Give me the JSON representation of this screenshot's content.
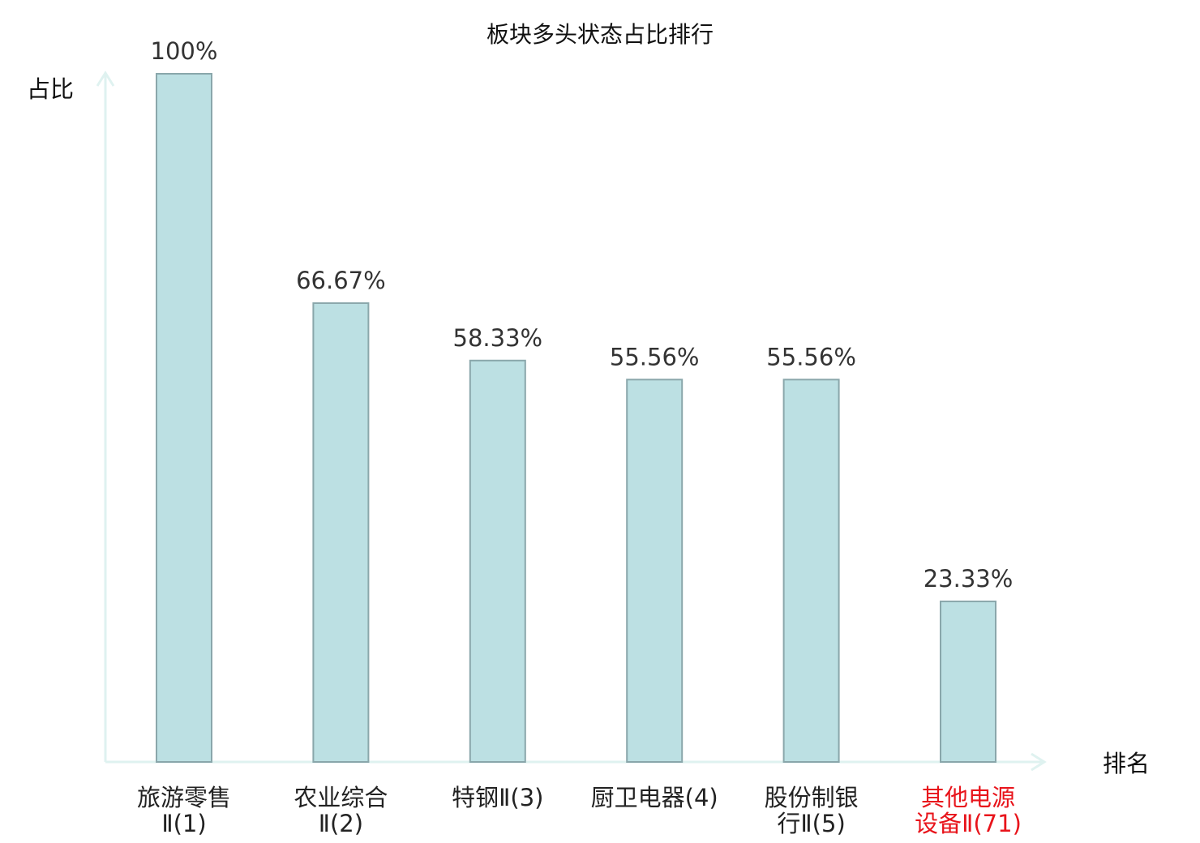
{
  "chart_data": {
    "type": "bar",
    "title": "板块多头状态占比排行",
    "ylabel": "占比",
    "xlabel": "排名",
    "ylim": [
      0,
      100
    ],
    "grid": false,
    "legend": "none",
    "categories": [
      [
        "旅游零售",
        "Ⅱ(1)"
      ],
      [
        "农业综合",
        "Ⅱ(2)"
      ],
      [
        "特钢Ⅱ(3)"
      ],
      [
        "厨卫电器(4)"
      ],
      [
        "股份制银",
        "行Ⅱ(5)"
      ],
      [
        "其他电源",
        "设备Ⅱ(71)"
      ]
    ],
    "values": [
      100,
      66.67,
      58.33,
      55.56,
      55.56,
      23.33
    ],
    "value_labels": [
      "100%",
      "66.67%",
      "58.33%",
      "55.56%",
      "55.56%",
      "23.33%"
    ],
    "highlight_index": 5,
    "colors": {
      "bar_fill": "#bce0e3",
      "bar_stroke": "#8aa7ab",
      "axis": "#dff2f0",
      "highlight_text": "#e8141b",
      "text": "#222222"
    }
  }
}
